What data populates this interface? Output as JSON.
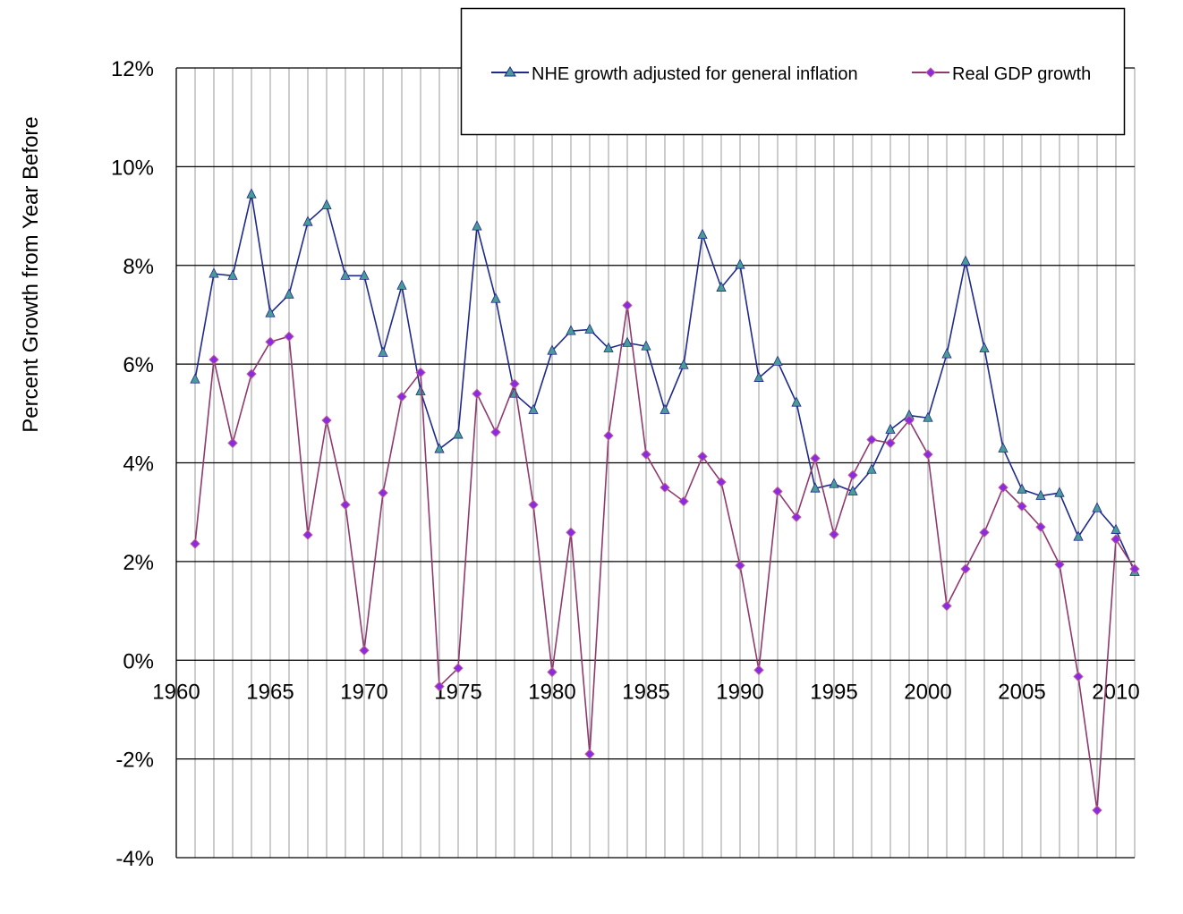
{
  "chart_data": {
    "type": "line",
    "title": "",
    "xlabel": "",
    "ylabel": "Percent Growth from Year Before",
    "xlim": [
      1960,
      2011
    ],
    "ylim": [
      -4,
      12
    ],
    "x_ticks": [
      "1960",
      "1965",
      "1970",
      "1975",
      "1980",
      "1985",
      "1990",
      "1995",
      "2000",
      "2005",
      "2010"
    ],
    "y_ticks": [
      "-4%",
      "-2%",
      "0%",
      "2%",
      "4%",
      "6%",
      "8%",
      "10%",
      "12%"
    ],
    "grid": {
      "vertical": "every year",
      "horizontal": "every 2%"
    },
    "legend_position": "top-right",
    "x": [
      1961,
      1962,
      1963,
      1964,
      1965,
      1966,
      1967,
      1968,
      1969,
      1970,
      1971,
      1972,
      1973,
      1974,
      1975,
      1976,
      1977,
      1978,
      1979,
      1980,
      1981,
      1982,
      1983,
      1984,
      1985,
      1986,
      1987,
      1988,
      1989,
      1990,
      1991,
      1992,
      1993,
      1994,
      1995,
      1996,
      1997,
      1998,
      1999,
      2000,
      2001,
      2002,
      2003,
      2004,
      2005,
      2006,
      2007,
      2008,
      2009,
      2010,
      2011
    ],
    "series": [
      {
        "name": "NHE growth adjusted for general inflation",
        "color": "#1f2a8c",
        "marker": "triangle",
        "marker_color": "#4a9a9a",
        "values": [
          5.69,
          7.83,
          7.79,
          9.44,
          7.03,
          7.41,
          8.88,
          9.22,
          7.79,
          7.79,
          6.23,
          7.59,
          5.45,
          4.28,
          4.57,
          8.79,
          7.32,
          5.4,
          5.07,
          6.27,
          6.67,
          6.7,
          6.32,
          6.43,
          6.36,
          5.07,
          5.98,
          8.62,
          7.55,
          8.01,
          5.72,
          6.05,
          5.22,
          3.48,
          3.57,
          3.42,
          3.86,
          4.67,
          4.96,
          4.91,
          6.2,
          8.08,
          6.32,
          4.29,
          3.46,
          3.33,
          3.39,
          2.5,
          3.08,
          2.64,
          1.79
        ]
      },
      {
        "name": "Real GDP growth",
        "color": "#8e3a6e",
        "marker": "diamond",
        "marker_color": "#8a2be2",
        "values": [
          2.36,
          6.09,
          4.4,
          5.8,
          6.45,
          6.56,
          2.54,
          4.86,
          3.15,
          0.2,
          3.39,
          5.34,
          5.83,
          -0.53,
          -0.16,
          5.4,
          4.62,
          5.6,
          3.15,
          -0.24,
          2.59,
          -1.9,
          4.55,
          7.19,
          4.17,
          3.5,
          3.22,
          4.13,
          3.61,
          1.92,
          -0.2,
          3.42,
          2.9,
          4.09,
          2.55,
          3.75,
          4.47,
          4.4,
          4.86,
          4.17,
          1.1,
          1.85,
          2.59,
          3.5,
          3.12,
          2.7,
          1.94,
          -0.33,
          -3.04,
          2.45,
          1.85
        ]
      }
    ]
  }
}
